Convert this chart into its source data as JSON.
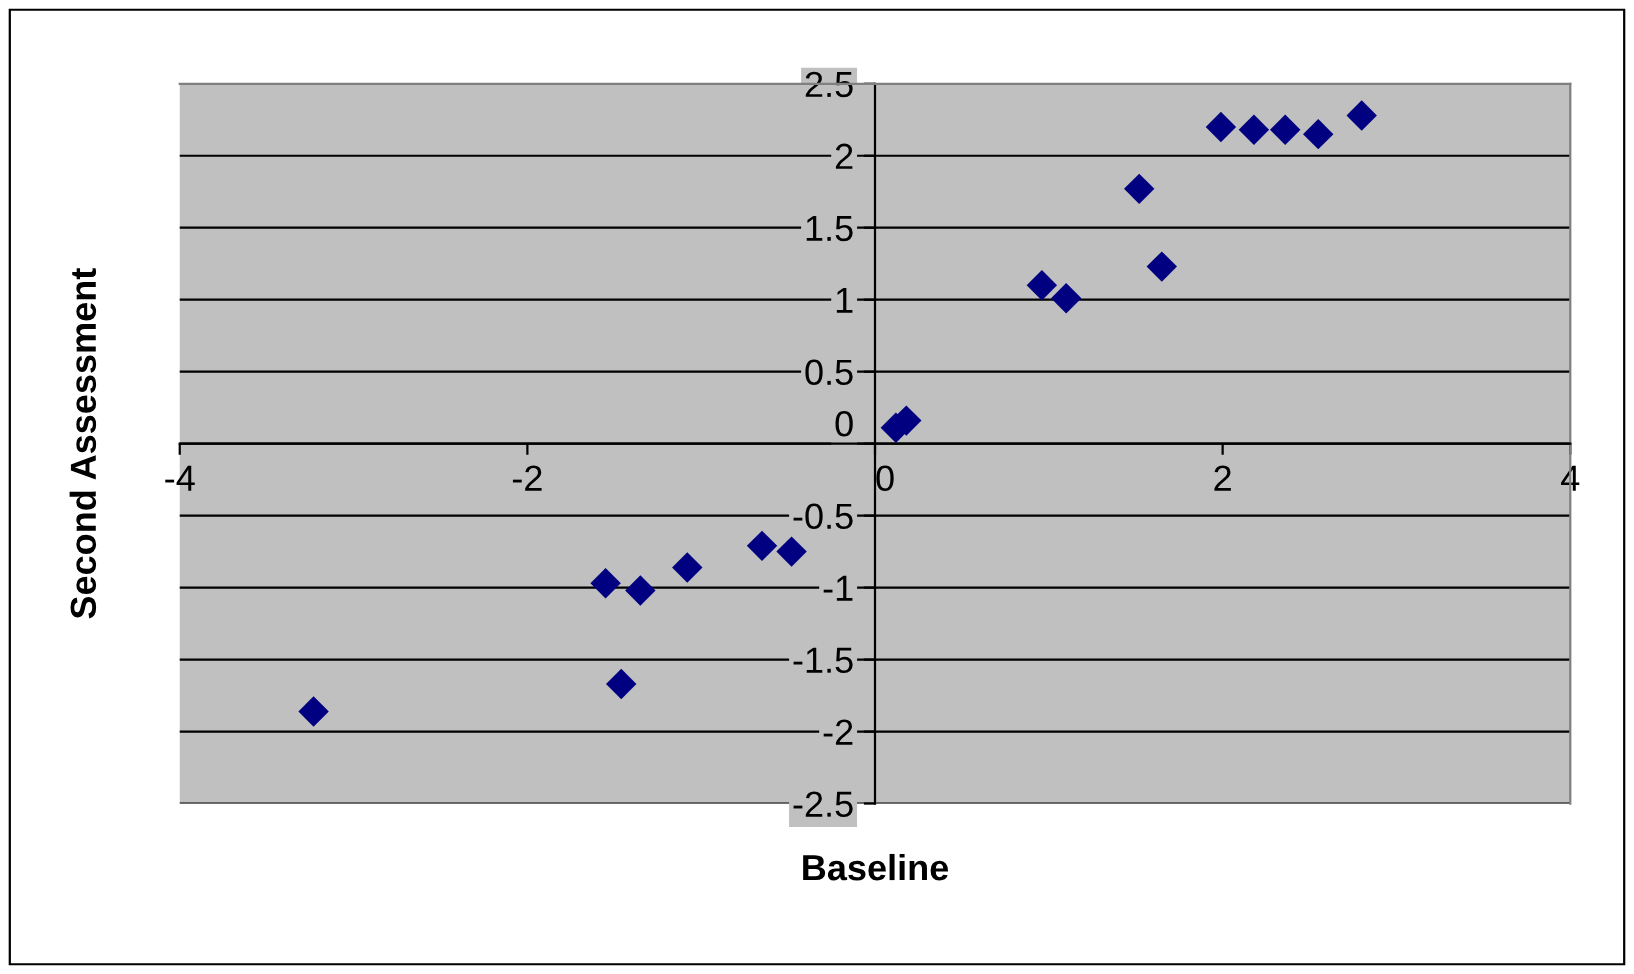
{
  "chart_data": {
    "type": "scatter",
    "xlabel": "Baseline",
    "ylabel": "Second Assessment",
    "series": [
      {
        "color": "#000080",
        "x": [
          -3.23,
          -1.55,
          -1.35,
          -1.46,
          -1.08,
          -0.65,
          -0.48,
          0.12,
          0.18,
          0.96,
          1.1,
          1.52,
          1.65,
          1.99,
          2.18,
          2.36,
          2.55,
          2.8
        ],
        "values": [
          -1.86,
          -0.97,
          -1.02,
          -1.67,
          -0.86,
          -0.71,
          -0.75,
          0.11,
          0.16,
          1.1,
          1.01,
          1.77,
          1.23,
          2.2,
          2.18,
          2.18,
          2.15,
          2.28
        ]
      }
    ],
    "xlim": [
      -4,
      4
    ],
    "xticks": [
      -4,
      -2,
      0,
      2,
      4
    ],
    "ylim": [
      -2.5,
      2.5
    ],
    "yticks": [
      -2.5,
      -2,
      -1.5,
      -1,
      -0.5,
      0,
      0.5,
      1,
      1.5,
      2,
      2.5
    ],
    "grid": "y",
    "marker": "diamond",
    "legend": false
  }
}
